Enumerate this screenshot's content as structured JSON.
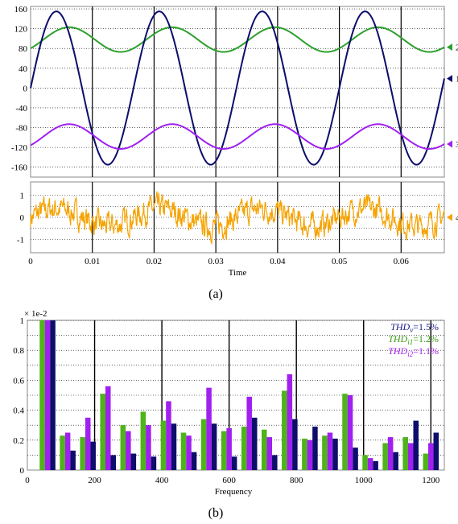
{
  "chart_data": [
    {
      "type": "line",
      "panel_label": "(a)",
      "xlabel": "Time",
      "x_ticks": [
        "0",
        "0.01",
        "0.02",
        "0.03",
        "0.04",
        "0.05",
        "0.06"
      ],
      "xlim": [
        0,
        0.067
      ],
      "top": {
        "ylim": [
          -180,
          165
        ],
        "y_ticks": [
          "160",
          "120",
          "80",
          "40",
          "0",
          "-40",
          "-80",
          "-120",
          "-160"
        ],
        "series": [
          {
            "marker": "2",
            "color": "#2ca02c",
            "offset": 98,
            "amplitude": 25,
            "frequency_hz": 60,
            "phase_peak_t": 0.00625
          },
          {
            "marker": "1",
            "color": "#0d0d6b",
            "offset": 0,
            "amplitude": 155,
            "frequency_hz": 60,
            "phase_peak_t": 0.00417
          },
          {
            "marker": "3",
            "color": "#a020f0",
            "offset": -98,
            "amplitude": 25,
            "frequency_hz": 60,
            "phase_peak_t": 0.00625
          }
        ]
      },
      "bottom": {
        "ylim": [
          -1.6,
          1.6
        ],
        "y_ticks": [
          "1",
          "0",
          "-1"
        ],
        "series": [
          {
            "marker": "4",
            "color": "#f5a300",
            "offset": 0,
            "amplitude": 0.4,
            "frequency_hz": 60,
            "noise": "yes"
          }
        ]
      }
    },
    {
      "type": "bar",
      "panel_label": "(b)",
      "xlabel": "Frequency",
      "multiplier": "× 1e-2",
      "x_ticks": [
        "0",
        "200",
        "400",
        "600",
        "800",
        "1000",
        "1200"
      ],
      "xlim": [
        0,
        1240
      ],
      "y_ticks": [
        "1",
        "0.8",
        "0.6",
        "0.4",
        "0.2",
        "0"
      ],
      "ylim": [
        0,
        1.0
      ],
      "categories": [
        60,
        120,
        180,
        240,
        300,
        360,
        420,
        480,
        540,
        600,
        660,
        720,
        780,
        840,
        900,
        960,
        1020,
        1080,
        1140,
        1200
      ],
      "series": [
        {
          "name": "THD_i1",
          "color": "#4fb31a",
          "values": [
            1.0,
            0.23,
            0.22,
            0.51,
            0.3,
            0.39,
            0.33,
            0.25,
            0.34,
            0.26,
            0.29,
            0.27,
            0.53,
            0.21,
            0.23,
            0.51,
            0.1,
            0.18,
            0.22,
            0.11
          ]
        },
        {
          "name": "THD_i2",
          "color": "#a020f0",
          "values": [
            1.0,
            0.25,
            0.35,
            0.56,
            0.26,
            0.3,
            0.46,
            0.23,
            0.55,
            0.28,
            0.49,
            0.22,
            0.64,
            0.2,
            0.25,
            0.5,
            0.08,
            0.22,
            0.18,
            0.18
          ]
        },
        {
          "name": "THD_v",
          "color": "#0d0d6b",
          "values": [
            1.0,
            0.13,
            0.19,
            0.1,
            0.11,
            0.09,
            0.31,
            0.12,
            0.31,
            0.09,
            0.35,
            0.1,
            0.34,
            0.29,
            0.21,
            0.15,
            0.06,
            0.12,
            0.33,
            0.25
          ]
        }
      ],
      "legend": [
        {
          "base": "THD",
          "sub": "v",
          "value": "=1.5%",
          "color": "#1a1a8c"
        },
        {
          "base": "THD",
          "sub": "i1",
          "value": "=1.2%",
          "color": "#3a9a10"
        },
        {
          "base": "THD",
          "sub": "i2",
          "value": "=1.1%",
          "color": "#a020f0"
        }
      ],
      "legend_position": "top-right",
      "grid": true
    }
  ]
}
